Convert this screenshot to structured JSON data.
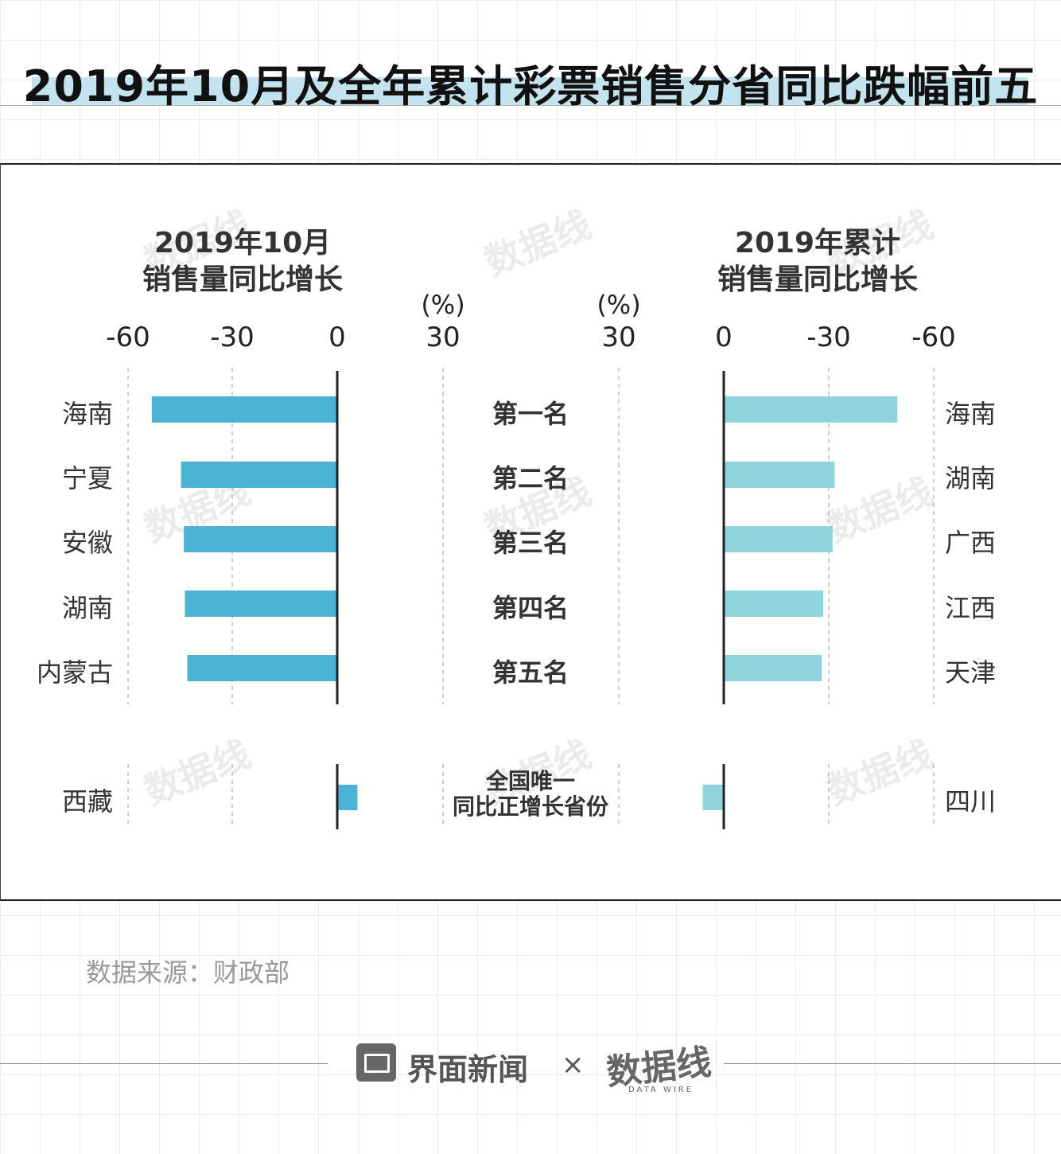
{
  "title": "2019年10月及全年累计彩票销售分省同比跌幅前五",
  "chart_data": [
    {
      "type": "bar",
      "orientation": "horizontal",
      "title_line1": "2019年10月",
      "title_line2": "销售量同比增长",
      "unit": "(%)",
      "ticks": [
        -60,
        -30,
        0,
        30
      ],
      "xlim": [
        -60,
        30
      ],
      "categories": [
        "海南",
        "宁夏",
        "安徽",
        "湖南",
        "内蒙古"
      ],
      "values": [
        -53.2,
        -44.8,
        -44.0,
        -43.7,
        -43.0
      ],
      "extra": {
        "category": "西藏",
        "value": 5.8
      },
      "color": "#4bb3d6"
    },
    {
      "type": "bar",
      "orientation": "horizontal",
      "title_line1": "2019年累计",
      "title_line2": "销售量同比增长",
      "unit": "(%)",
      "ticks": [
        30,
        0,
        -30,
        -60
      ],
      "xlim": [
        30,
        -60
      ],
      "categories": [
        "海南",
        "湖南",
        "广西",
        "江西",
        "天津"
      ],
      "values": [
        -49.6,
        -31.7,
        -31.1,
        -28.4,
        -28.0
      ],
      "extra": {
        "category": "四川",
        "value": 6.0
      },
      "color": "#8fd4dc"
    }
  ],
  "ranks": [
    "第一名",
    "第二名",
    "第三名",
    "第四名",
    "第五名"
  ],
  "special_label_line1": "全国唯一",
  "special_label_line2": "同比正增长省份",
  "source": "数据来源：财政部",
  "footer": {
    "brand1": "界面新闻",
    "times": "×",
    "brand2": "数据线",
    "brand2_sub": "DATA WIRE"
  }
}
